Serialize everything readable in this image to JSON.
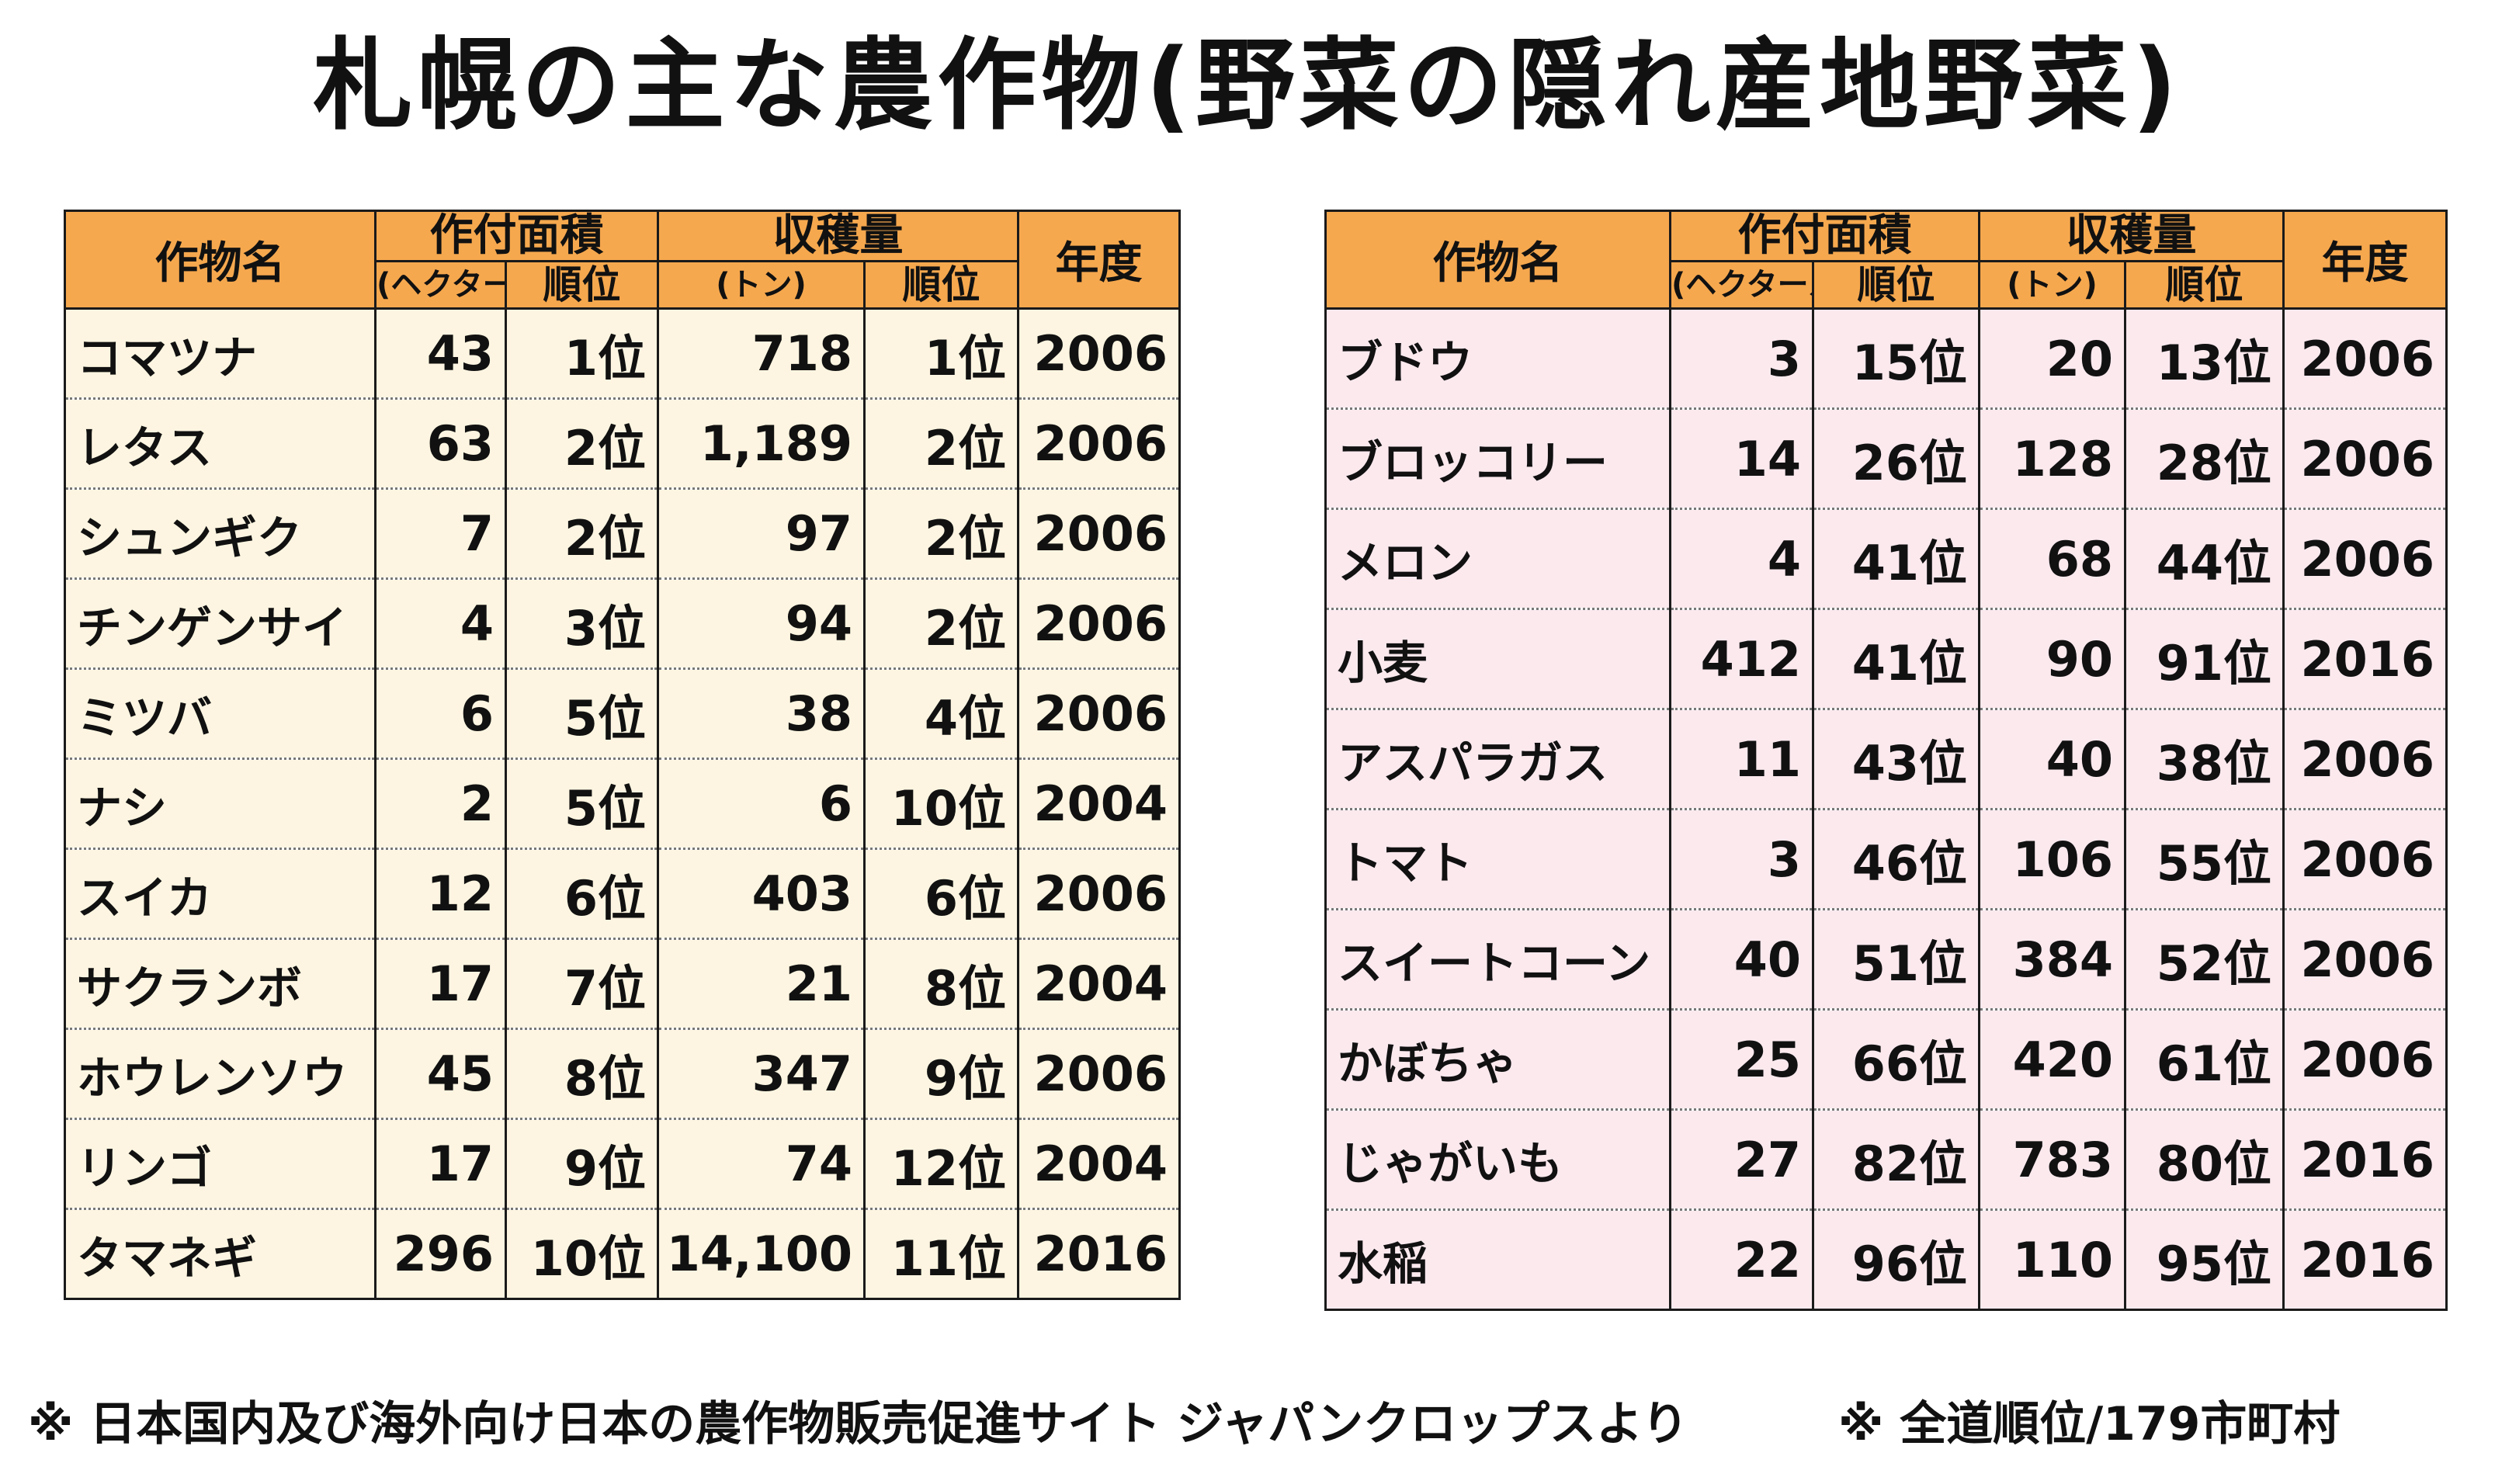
{
  "title": "札幌の主な農作物(野菜の隠れ産地野菜)",
  "headers": {
    "crop_name": "作物名",
    "area": "作付面積",
    "area_unit": "(ヘクタール)",
    "rank": "順位",
    "harvest": "収穫量",
    "harvest_unit": "(トン)",
    "year": "年度"
  },
  "left_table": [
    {
      "name": "コマツナ",
      "area": "43",
      "area_rank": "1位",
      "harvest": "718",
      "harvest_rank": "1位",
      "year": "2006"
    },
    {
      "name": "レタス",
      "area": "63",
      "area_rank": "2位",
      "harvest": "1,189",
      "harvest_rank": "2位",
      "year": "2006"
    },
    {
      "name": "シュンギク",
      "area": "7",
      "area_rank": "2位",
      "harvest": "97",
      "harvest_rank": "2位",
      "year": "2006"
    },
    {
      "name": "チンゲンサイ",
      "area": "4",
      "area_rank": "3位",
      "harvest": "94",
      "harvest_rank": "2位",
      "year": "2006"
    },
    {
      "name": "ミツバ",
      "area": "6",
      "area_rank": "5位",
      "harvest": "38",
      "harvest_rank": "4位",
      "year": "2006"
    },
    {
      "name": "ナシ",
      "area": "2",
      "area_rank": "5位",
      "harvest": "6",
      "harvest_rank": "10位",
      "year": "2004"
    },
    {
      "name": "スイカ",
      "area": "12",
      "area_rank": "6位",
      "harvest": "403",
      "harvest_rank": "6位",
      "year": "2006"
    },
    {
      "name": "サクランボ",
      "area": "17",
      "area_rank": "7位",
      "harvest": "21",
      "harvest_rank": "8位",
      "year": "2004"
    },
    {
      "name": "ホウレンソウ",
      "area": "45",
      "area_rank": "8位",
      "harvest": "347",
      "harvest_rank": "9位",
      "year": "2006"
    },
    {
      "name": "リンゴ",
      "area": "17",
      "area_rank": "9位",
      "harvest": "74",
      "harvest_rank": "12位",
      "year": "2004"
    },
    {
      "name": "タマネギ",
      "area": "296",
      "area_rank": "10位",
      "harvest": "14,100",
      "harvest_rank": "11位",
      "year": "2016"
    }
  ],
  "right_table": [
    {
      "name": "ブドウ",
      "area": "3",
      "area_rank": "15位",
      "harvest": "20",
      "harvest_rank": "13位",
      "year": "2006"
    },
    {
      "name": "ブロッコリー",
      "area": "14",
      "area_rank": "26位",
      "harvest": "128",
      "harvest_rank": "28位",
      "year": "2006"
    },
    {
      "name": "メロン",
      "area": "4",
      "area_rank": "41位",
      "harvest": "68",
      "harvest_rank": "44位",
      "year": "2006"
    },
    {
      "name": "小麦",
      "area": "412",
      "area_rank": "41位",
      "harvest": "90",
      "harvest_rank": "91位",
      "year": "2016"
    },
    {
      "name": "アスパラガス",
      "area": "11",
      "area_rank": "43位",
      "harvest": "40",
      "harvest_rank": "38位",
      "year": "2006"
    },
    {
      "name": "トマト",
      "area": "3",
      "area_rank": "46位",
      "harvest": "106",
      "harvest_rank": "55位",
      "year": "2006"
    },
    {
      "name": "スイートコーン",
      "area": "40",
      "area_rank": "51位",
      "harvest": "384",
      "harvest_rank": "52位",
      "year": "2006"
    },
    {
      "name": "かぼちゃ",
      "area": "25",
      "area_rank": "66位",
      "harvest": "420",
      "harvest_rank": "61位",
      "year": "2006"
    },
    {
      "name": "じゃがいも",
      "area": "27",
      "area_rank": "82位",
      "harvest": "783",
      "harvest_rank": "80位",
      "year": "2016"
    },
    {
      "name": "水稲",
      "area": "22",
      "area_rank": "96位",
      "harvest": "110",
      "harvest_rank": "95位",
      "year": "2016"
    }
  ],
  "footnotes": {
    "source": "※ 日本国内及び海外向け日本の農作物販売促進サイト ジャパンクロップスより",
    "rank_note": "※ 全道順位/179市町村"
  },
  "colors": {
    "header_bg": "#f6a84e",
    "left_body_bg": "#fdf5e1",
    "right_body_bg": "#fbe9ee"
  }
}
